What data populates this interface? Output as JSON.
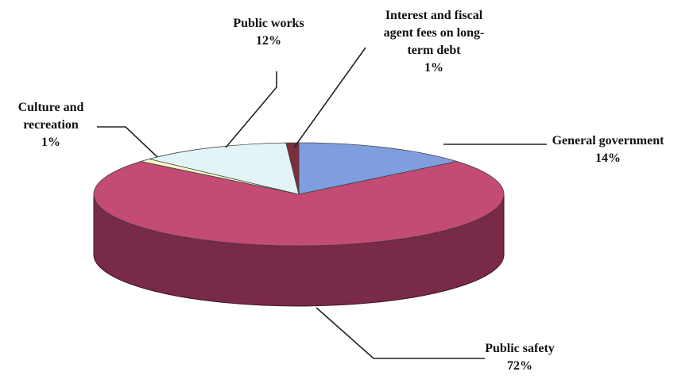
{
  "chart_data": {
    "type": "pie",
    "title": "",
    "slices": [
      {
        "label_lines": [
          "General government",
          "14%"
        ],
        "value": 14,
        "color": "#7f9ee0",
        "side_color": "#4d6aa8"
      },
      {
        "label_lines": [
          "Public safety",
          "72%"
        ],
        "value": 72,
        "color": "#c44b74",
        "side_color": "#7a2a49"
      },
      {
        "label_lines": [
          "Culture and",
          "recreation",
          "1%"
        ],
        "value": 1,
        "color": "#f6f6c6",
        "side_color": "#b8b88e"
      },
      {
        "label_lines": [
          "Public works",
          "12%"
        ],
        "value": 12,
        "color": "#e2f4f6",
        "side_color": "#9fb8bb"
      },
      {
        "label_lines": [
          "Interest and fiscal",
          "agent fees on long-",
          "term debt",
          "1%"
        ],
        "value": 1,
        "color": "#7c2e3c",
        "side_color": "#4e1b25"
      }
    ]
  }
}
